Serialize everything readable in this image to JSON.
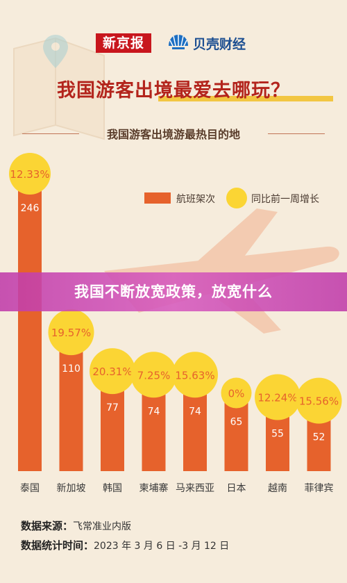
{
  "logos": {
    "left": "新京报",
    "right": "贝壳财经"
  },
  "headline": "我国游客出境最爱去哪玩？",
  "banner": "我国不断放宽政策，放宽什么",
  "chart_data": {
    "type": "bar",
    "title": "我国游客出境游最热目的地",
    "categories": [
      "泰国",
      "新加坡",
      "韩国",
      "柬埔寨",
      "马来西亚",
      "日本",
      "越南",
      "菲律宾"
    ],
    "series": [
      {
        "name": "航班架次",
        "values": [
          246,
          110,
          77,
          74,
          74,
          65,
          55,
          52
        ]
      }
    ],
    "growth_labels": [
      "12.33%",
      "19.57%",
      "20.31%",
      "7.25%",
      "15.63%",
      "0%",
      "12.24%",
      "15.56%"
    ],
    "growth_series_name": "同比前一周增长",
    "colors": {
      "bar": "#e6622c",
      "bubble": "#fbd534",
      "label": "#ffffff"
    },
    "legend_position": "top-right",
    "grid": false
  },
  "source": {
    "label1": "数据来源：",
    "value1": "飞常准业内版",
    "label2": "数据统计时间：",
    "value2": "2023 年 3 月 6 日 -3 月 12 日"
  }
}
